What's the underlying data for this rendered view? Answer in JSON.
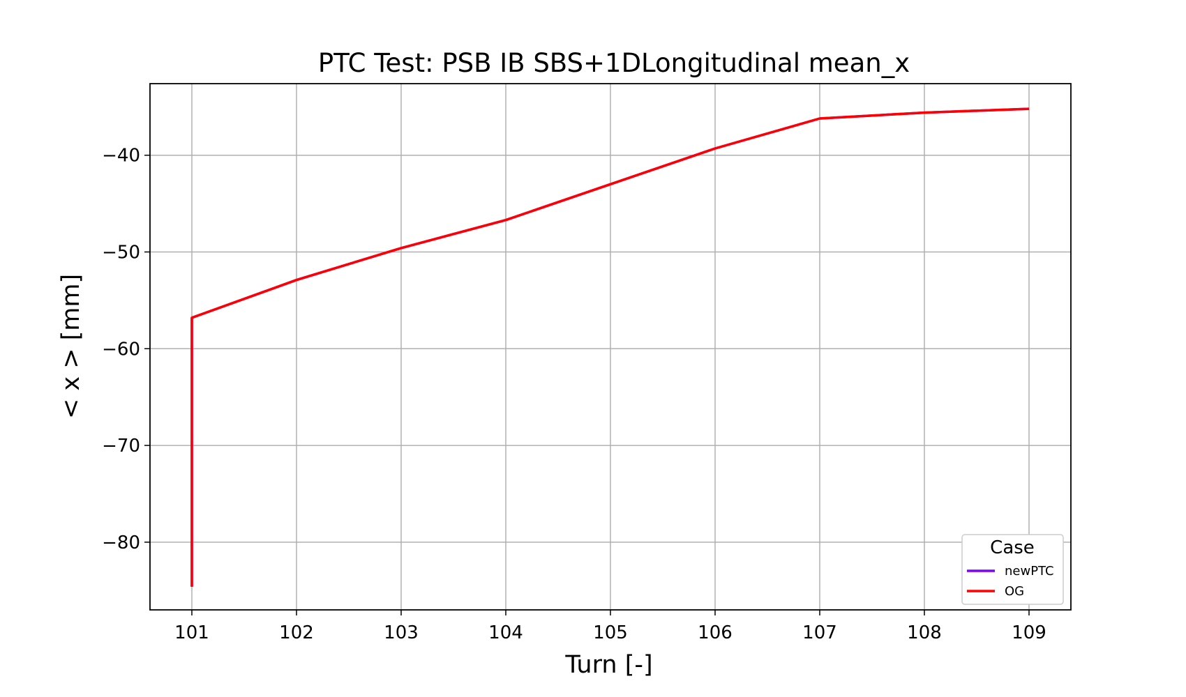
{
  "chart_data": {
    "type": "line",
    "title": "PTC Test: PSB IB SBS+1DLongitudinal mean_x",
    "xlabel": "Turn [-]",
    "ylabel": "< x >  [mm]",
    "xlim": [
      100.6,
      109.4
    ],
    "ylim": [
      -87.0,
      -32.6
    ],
    "x_ticks": [
      101,
      102,
      103,
      104,
      105,
      106,
      107,
      108,
      109
    ],
    "x_tick_labels": [
      "101",
      "102",
      "103",
      "104",
      "105",
      "106",
      "107",
      "108",
      "109"
    ],
    "y_ticks": [
      -80,
      -70,
      -60,
      -50,
      -40
    ],
    "y_tick_labels": [
      "−80",
      "−70",
      "−60",
      "−50",
      "−40"
    ],
    "grid": true,
    "legend": {
      "title": "Case",
      "placement": "lower-right"
    },
    "series": [
      {
        "name": "newPTC",
        "color": "#8000ff",
        "x": [
          101,
          101,
          101,
          102,
          103,
          104,
          105,
          106,
          107,
          108,
          109
        ],
        "y": [
          -84.6,
          -62.0,
          -56.8,
          -52.9,
          -49.6,
          -46.7,
          -43.0,
          -39.3,
          -36.2,
          -35.6,
          -35.2
        ]
      },
      {
        "name": "OG",
        "color": "#ff0000",
        "x": [
          101,
          101,
          101,
          102,
          103,
          104,
          105,
          106,
          107,
          108,
          109
        ],
        "y": [
          -84.6,
          -62.0,
          -56.8,
          -52.9,
          -49.6,
          -46.7,
          -43.0,
          -39.3,
          -36.2,
          -35.6,
          -35.2
        ]
      }
    ]
  }
}
